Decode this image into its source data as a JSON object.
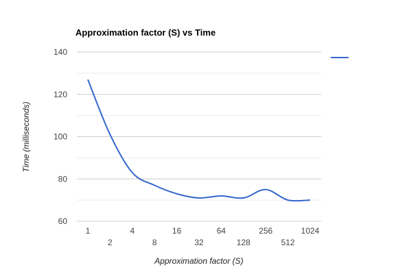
{
  "chart_data": {
    "type": "line",
    "title": "Approximation factor (S) vs Time",
    "xlabel": "Approximation factor (S)",
    "ylabel": "Time (milliseconds)",
    "x_scale": "log2",
    "ylim": [
      60,
      140
    ],
    "y_ticks": [
      60,
      80,
      100,
      120,
      140
    ],
    "x_ticks": [
      1,
      2,
      4,
      8,
      16,
      32,
      64,
      128,
      256,
      512,
      1024
    ],
    "legend": "right",
    "series_color": "#3366cc",
    "series": [
      {
        "x": [
          1,
          2,
          4,
          8,
          16,
          32,
          64,
          128,
          256,
          512,
          1024
        ],
        "values": [
          127,
          101,
          83,
          77,
          73,
          71,
          72,
          71,
          75,
          70,
          70
        ]
      }
    ]
  }
}
